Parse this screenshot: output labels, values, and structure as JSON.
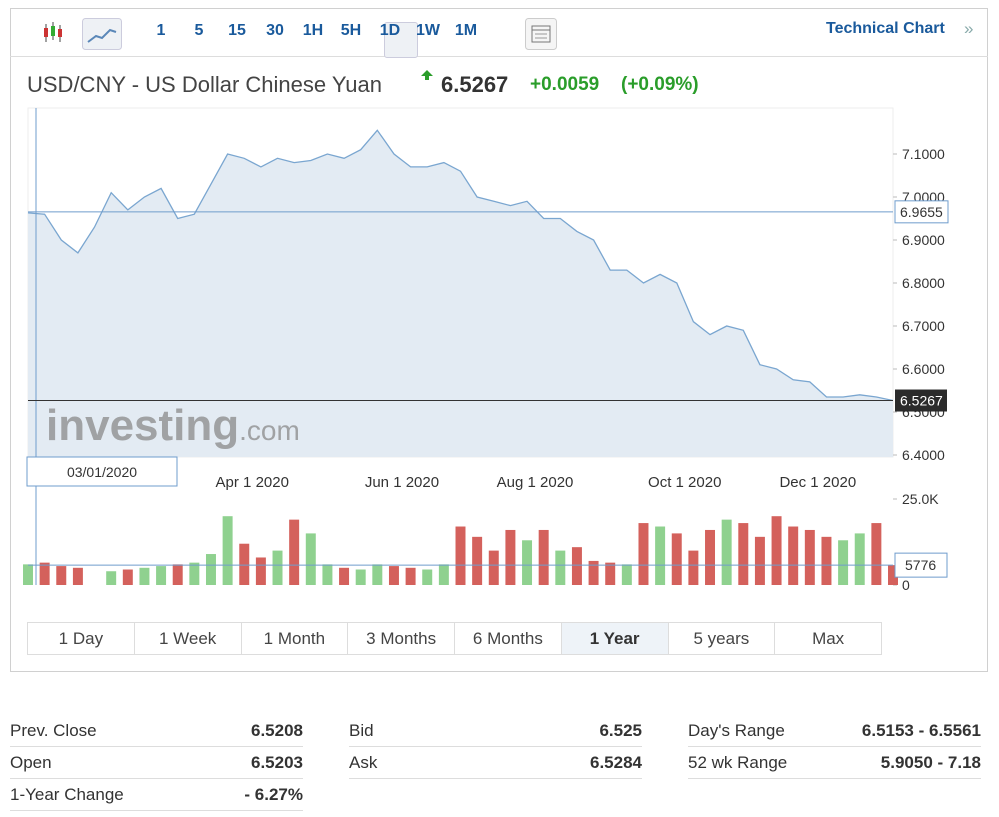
{
  "toolbar": {
    "intervals": [
      "1",
      "5",
      "15",
      "30",
      "1H",
      "5H",
      "1D",
      "1W",
      "1M"
    ],
    "active": "1D",
    "link": "Technical Chart"
  },
  "quote": {
    "title": "USD/CNY - US Dollar Chinese Yuan",
    "last": "6.5267",
    "change": "+0.0059",
    "change_pct": "(+0.09%)"
  },
  "chart_data": {
    "type": "line",
    "color": "#7aa6d0",
    "area_color": "#e3ebf3",
    "categories": [
      null,
      null,
      null,
      null,
      null,
      null,
      null,
      null,
      null,
      null,
      null,
      null,
      null,
      "Apr 1 2020",
      null,
      null,
      null,
      null,
      null,
      null,
      null,
      null,
      "Jun 1 2020",
      null,
      null,
      null,
      null,
      null,
      null,
      null,
      "Aug 1 2020",
      null,
      null,
      null,
      null,
      null,
      null,
      null,
      null,
      "Oct 1 2020",
      null,
      null,
      null,
      null,
      null,
      null,
      null,
      "Dec 1 2020",
      null,
      null,
      null,
      null,
      null
    ],
    "values": [
      6.963,
      6.96,
      6.9,
      6.87,
      6.93,
      7.01,
      6.97,
      7.0,
      7.02,
      6.95,
      6.96,
      7.03,
      7.1,
      7.09,
      7.07,
      7.09,
      7.08,
      7.085,
      7.1,
      7.09,
      7.11,
      7.155,
      7.1,
      7.07,
      7.07,
      7.08,
      7.06,
      7.0,
      6.99,
      6.98,
      6.99,
      6.95,
      6.95,
      6.92,
      6.9,
      6.83,
      6.83,
      6.8,
      6.82,
      6.8,
      6.71,
      6.68,
      6.7,
      6.69,
      6.61,
      6.6,
      6.575,
      6.57,
      6.535,
      6.535,
      6.54,
      6.535,
      6.5267
    ],
    "ylim": [
      6.4,
      7.2
    ],
    "yticks": [
      {
        "value": 6.4,
        "label": "6.4000"
      },
      {
        "value": 6.5,
        "label": "6.5000"
      },
      {
        "value": 6.6,
        "label": "6.6000"
      },
      {
        "value": 6.7,
        "label": "6.7000"
      },
      {
        "value": 6.8,
        "label": "6.8000"
      },
      {
        "value": 6.9,
        "label": "6.9000"
      },
      {
        "value": 7.0,
        "label": "7.0000"
      },
      {
        "value": 7.1,
        "label": "7.1000"
      }
    ],
    "grid": false,
    "last": 6.5267,
    "crosshair": {
      "value": 6.9655,
      "date": "03/01/2020"
    },
    "watermark": [
      "investing",
      ".com"
    ],
    "volume": {
      "type": "bar",
      "up_color": "#8fd18f",
      "down_color": "#d4615c",
      "values": [
        6000,
        6500,
        5500,
        5000,
        0,
        4000,
        4500,
        5000,
        5500,
        6000,
        6500,
        9000,
        20000,
        12000,
        8000,
        10000,
        19000,
        15000,
        6000,
        5000,
        4500,
        6000,
        5500,
        5000,
        4500,
        6000,
        17000,
        14000,
        10000,
        16000,
        13000,
        16000,
        10000,
        11000,
        7000,
        6500,
        6000,
        18000,
        17000,
        15000,
        10000,
        16000,
        19000,
        18000,
        14000,
        20000,
        17000,
        16000,
        14000,
        13000,
        15000,
        18000,
        5776
      ],
      "ylim": [
        0,
        25000
      ],
      "yticks": [
        0,
        {
          "value": 25000,
          "label": "25.0K"
        }
      ],
      "crosshair": 5776
    }
  },
  "ranges": {
    "buttons": [
      "1 Day",
      "1 Week",
      "1 Month",
      "3 Months",
      "6 Months",
      "1 Year",
      "5 years",
      "Max"
    ],
    "active": "1 Year"
  },
  "stats": [
    [
      [
        "Prev. Close",
        6.5208
      ],
      [
        "Open",
        6.5203
      ],
      [
        "1-Year Change",
        "- 6.27%"
      ]
    ],
    [
      [
        "Bid",
        6.525
      ],
      [
        "Ask",
        6.5284
      ]
    ],
    [
      [
        "Day's Range",
        "6.5153 - 6.5561"
      ],
      [
        "52 wk Range",
        "5.9050 - 7.18"
      ]
    ]
  ]
}
